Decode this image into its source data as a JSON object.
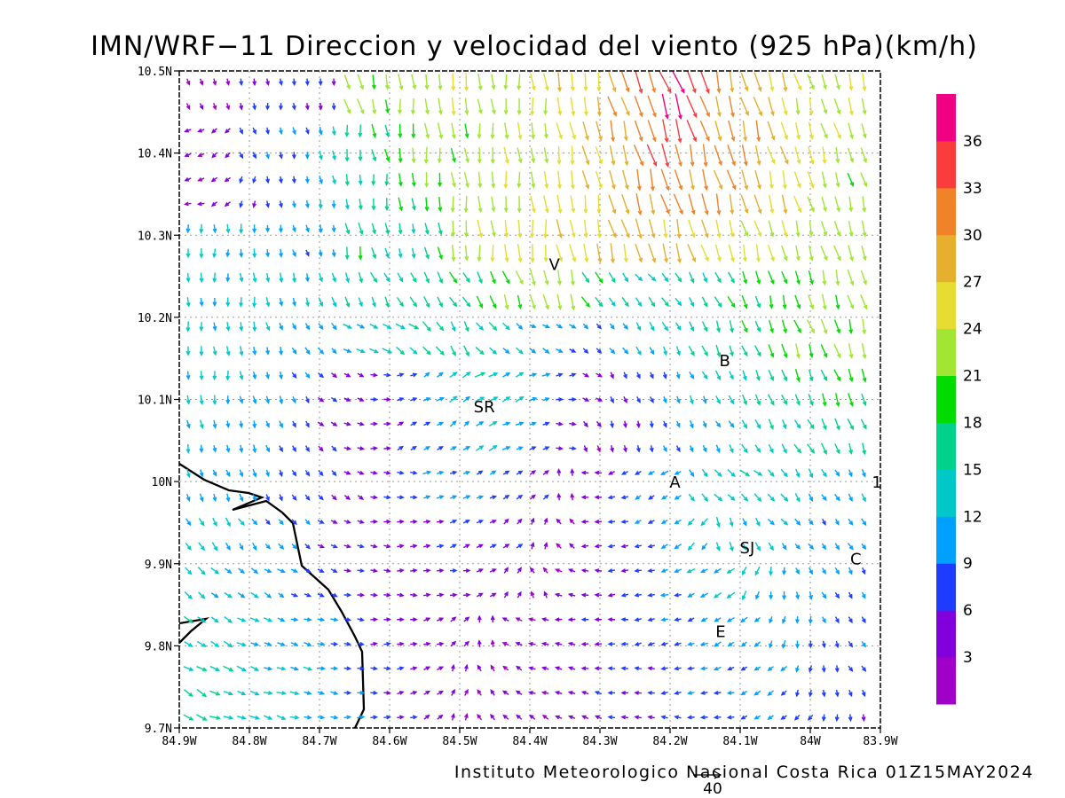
{
  "title": "IMN/WRF−11 Direccion y velocidad del viento (925 hPa)(km/h)",
  "credit": "Instituto Meteorologico Nacional Costa Rica 01Z15MAY2024",
  "reference_vector_label": "40",
  "map": {
    "lon_range": [
      -84.9,
      -83.9
    ],
    "lat_range": [
      9.7,
      10.5
    ],
    "x_ticks": [
      {
        "lon": -84.9,
        "label": "84.9W"
      },
      {
        "lon": -84.8,
        "label": "84.8W"
      },
      {
        "lon": -84.7,
        "label": "84.7W"
      },
      {
        "lon": -84.6,
        "label": "84.6W"
      },
      {
        "lon": -84.5,
        "label": "84.5W"
      },
      {
        "lon": -84.4,
        "label": "84.4W"
      },
      {
        "lon": -84.3,
        "label": "84.3W"
      },
      {
        "lon": -84.2,
        "label": "84.2W"
      },
      {
        "lon": -84.1,
        "label": "84.1W"
      },
      {
        "lon": -84.0,
        "label": "84W"
      },
      {
        "lon": -83.9,
        "label": "83.9W"
      }
    ],
    "y_ticks": [
      {
        "lat": 9.7,
        "label": "9.7N"
      },
      {
        "lat": 9.8,
        "label": "9.8N"
      },
      {
        "lat": 9.9,
        "label": "9.9N"
      },
      {
        "lat": 10.0,
        "label": "10N"
      },
      {
        "lat": 10.1,
        "label": "10.1N"
      },
      {
        "lat": 10.2,
        "label": "10.2N"
      },
      {
        "lat": 10.3,
        "label": "10.3N"
      },
      {
        "lat": 10.4,
        "label": "10.4N"
      },
      {
        "lat": 10.5,
        "label": "10.5N"
      }
    ],
    "grid": true,
    "cities": [
      {
        "label": "V",
        "lon": -84.365,
        "lat": 10.265
      },
      {
        "label": "B",
        "lon": -84.122,
        "lat": 10.148
      },
      {
        "label": "SR",
        "lon": -84.465,
        "lat": 10.092
      },
      {
        "label": "A",
        "lon": -84.193,
        "lat": 10.0
      },
      {
        "label": "SJ",
        "lon": -84.09,
        "lat": 9.92
      },
      {
        "label": "C",
        "lon": -83.935,
        "lat": 9.907
      },
      {
        "label": "E",
        "lon": -84.128,
        "lat": 9.818
      },
      {
        "label": "1",
        "lon": -83.905,
        "lat": 10.0
      }
    ]
  },
  "colorbar": {
    "labels": [
      "3",
      "6",
      "9",
      "12",
      "15",
      "18",
      "21",
      "24",
      "27",
      "30",
      "33",
      "36"
    ],
    "colors": [
      "#a000c8",
      "#8200dc",
      "#1e3cff",
      "#00a0ff",
      "#00c8c8",
      "#00d28c",
      "#00dc00",
      "#a0e632",
      "#e6dc32",
      "#e6af2d",
      "#f08228",
      "#fa3c3c",
      "#f00082"
    ]
  },
  "wind_rows": [
    "2:300:7 1:280:5 6:280:12 6:275:11 6:275:12 6:280:13 22:285:22 20:280:21 22:275:23 22:275:24 24:280:25 22:275:26 22:270:26 24:275:26 26:275:27 26:280:29 29:285:30 32:290:34 36:290:38 33:290:35 30:285:30 28:285:28 26:285:27 24:285:25 22:285:24 24:285:25",
    "3:200:5 4:230:6 7:290:9 8:285:11 9:280:12 12:280:14 16:275:16 18:280:18 20:275:19 22:275:21 21:280:22 22:275:22 23:275:24 22:280:23 25:280:26 27:285:28 29:285:30 32:285:32 33:285:33 32:285:32 30:285:30 29:285:28 27:285:27 25:285:26 23:285:24 22:285:23",
    "3:195:4 4:215:5 6:260:7 7:275:9 9:280:10 11:280:12 15:275:15 16:275:17 18:275:19 20:275:21 22:275:22 22:275:23 23:275:24 24:275:25 25:280:26 26:280:27 28:285:29 30:285:30 31:285:30 30:285:29 29:285:27 28:285:26 26:285:25 24:285:24 22:285:23 21:285:22",
    "12:270:8 11:270:8 12:270:9 10:280:10 9:285:10 10:280:11 17:280:15 15:285:15 14:285:16 17:280:19 22:275:22 24:275:23 25:275:25 25:275:26 26:280:27 26:280:26 27:285:27 28:285:27 27:285:26 26:285:25 25:285:24 24:285:23 23:285:22 22:285:22 22:285:22 22:285:22",
    "12:270:10 12:270:10 13:275:11 12:280:11 12:285:11 13:285:12 14:290:13 15:295:14 15:300:15 16:300:15 17:300:15 18:295:16 20:290:18 22:285:20 22:285:21 17:300:16 15:305:14 14:310:13 14:305:12 15:300:13 17:295:16 18:290:18 19:285:20 20:285:21 21:285:22 22:285:22",
    "13:275:10 12:275:10 12:280:10 11:285:9 10:300:8 10:315:8 12:330:9 13:335:11 14:325:12 16:310:14 15:300:13 14:310:12 12:320:10 10:330:9 9:330:8 8:320:7 10:305:8 12:300:9 13:295:10 15:295:12 16:290:14 17:290:15 19:290:16 20:290:17 21:290:18 21:285:19",
    "12:275:10 12:275:10 11:280:10 10:285:9 8:300:7 6:320:6 4:340:5 5:350:5 7:20:6 10:30:8 12:35:10 14:30:12 12:25:11 10:20:9 7:10:6 4:330:5 5:300:5 7:290:6 9:290:7 11:295:9 13:295:11 15:295:12 16:290:13 17:290:14 18:290:15 18:285:15",
    "11:280:9 10:280:9 10:285:9 9:290:8 7:300:6 5:320:4 4:345:4 4:10:4 6:25:5 8:30:7 10:35:9 12:30:10 10:25:9 8:15:7 5:355:5 3:300:4 5:280:4 6:285:5 8:290:6 10:295:8 11:300:10 13:300:11 14:300:12 15:300:13 16:295:14 16:290:14",
    "11:290:9 10:290:9 10:290:9 8:295:7 7:300:6 6:315:5 4:330:4 5:350:5 7:0:6 10:10:8 9:20:8 8:25:7 7:30:6 5:45:4 3:90:3 4:180:4 6:200:5 8:210:6 10:215:8 12:300:9 13:320:11 14:320:12 13:310:11 12:300:10 11:300:9 11:295:9",
    "12:300:10 12:300:10 11:305:9 9:310:8 8:320:7 6:330:5 5:345:5 4:355:4 4:5:4 5:15:5 6:20:5 6:25:5 5:40:4 4:70:3 3:140:3 4:180:4 6:190:5 8:200:6 10:210:8 12:235:9 13:280:10 12:300:10 11:310:9 10:310:9 9:305:8 10:300:8",
    "13:320:10 12:320:10 11:325:9 10:330:8 8:335:7 7:340:6 5:350:5 4:355:4 4:0:4 4:5:4 5:10:5 4:20:4 4:60:3 3:120:3 3:160:3 4:180:4 6:185:5 7:190:6 9:195:7 11:205:8 12:220:9 12:240:9 11:270:9 10:290:9 9:300:8 9:300:8",
    "14:325:11 13:330:11 12:335:10 11:340:9 10:345:8 9:350:7 7:355:6 5:0:5 4:5:4 4:15:4 4:40:3 3:100:3 3:150:3 3:170:3 4:175:4 5:180:5 6:185:5 7:190:6 8:195:7 9:200:8 10:210:8 10:225:8 10:245:8 9:270:8 8:290:7 8:300:7",
    "15:330:11 14:335:11 13:340:10 12:345:10 11:345:9 10:350:9 8:355:7 6:0:6 5:10:5 4:30:4 3:70:3 3:120:3 3:150:3 3:160:3 4:165:4 5:170:5 6:175:5 6:180:5 7:185:6 8:190:6 9:195:7 9:210:7 9:225:8 8:250:7 7:280:6 7:300:6",
    "15:335:11 14:340:11 13:345:10 12:345:10 11:350:9 10:355:9 9:0:8 7:5:6 6:15:5 4:35:4 3:80:3 3:120:3 3:140:3 3:150:3 4:155:4 4:160:4 5:165:5 5:170:5 6:175:5 7:180:6 7:190:6 8:200:6 8:215:7 7:235:6 6:260:5 6:280:5"
  ]
}
